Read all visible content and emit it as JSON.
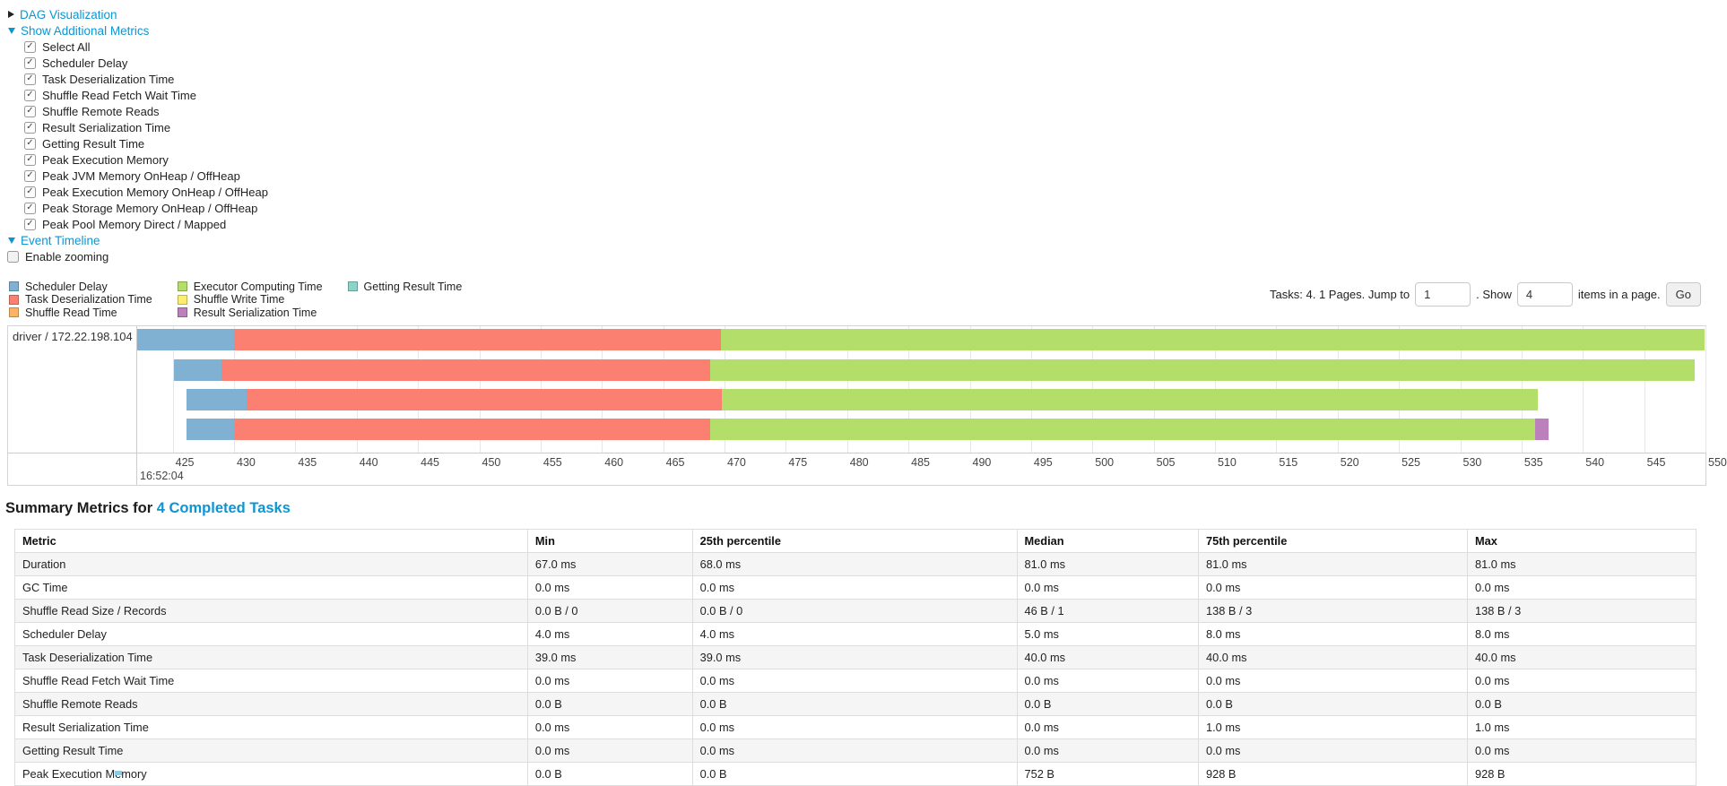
{
  "sections": {
    "dag": {
      "label": "DAG Visualization",
      "state": "collapsed"
    },
    "additional_metrics": {
      "label": "Show Additional Metrics",
      "state": "expanded"
    },
    "event_timeline": {
      "label": "Event Timeline",
      "state": "expanded"
    }
  },
  "metrics_panel": {
    "items": [
      {
        "label": "Select All",
        "checked": true
      },
      {
        "label": "Scheduler Delay",
        "checked": true
      },
      {
        "label": "Task Deserialization Time",
        "checked": true
      },
      {
        "label": "Shuffle Read Fetch Wait Time",
        "checked": true
      },
      {
        "label": "Shuffle Remote Reads",
        "checked": true
      },
      {
        "label": "Result Serialization Time",
        "checked": true
      },
      {
        "label": "Getting Result Time",
        "checked": true
      },
      {
        "label": "Peak Execution Memory",
        "checked": true
      },
      {
        "label": "Peak JVM Memory OnHeap / OffHeap",
        "checked": true
      },
      {
        "label": "Peak Execution Memory OnHeap / OffHeap",
        "checked": true
      },
      {
        "label": "Peak Storage Memory OnHeap / OffHeap",
        "checked": true
      },
      {
        "label": "Peak Pool Memory Direct / Mapped",
        "checked": true
      }
    ]
  },
  "enable_zooming": {
    "label": "Enable zooming",
    "checked": false
  },
  "legend": {
    "columns": [
      [
        {
          "label": "Scheduler Delay",
          "color": "#80B1D3"
        },
        {
          "label": "Task Deserialization Time",
          "color": "#FB8072"
        },
        {
          "label": "Shuffle Read Time",
          "color": "#FDB462"
        }
      ],
      [
        {
          "label": "Executor Computing Time",
          "color": "#B3DE69"
        },
        {
          "label": "Shuffle Write Time",
          "color": "#FFED6F"
        },
        {
          "label": "Result Serialization Time",
          "color": "#BC80BD"
        }
      ],
      [
        {
          "label": "Getting Result Time",
          "color": "#8DD3C7"
        }
      ]
    ]
  },
  "pagination": {
    "tasks_text": "Tasks: 4. 1 Pages. Jump to",
    "jump_value": "1",
    "show_label": ". Show",
    "show_value": "4",
    "items_label": "items in a page.",
    "go_label": "Go"
  },
  "chart_data": {
    "type": "timeline",
    "row_label": "driver / 172.22.198.104",
    "major_label": "16:52:04",
    "domain": [
      422.1,
      550.0
    ],
    "axis_ticks": [
      425,
      430,
      435,
      440,
      445,
      450,
      455,
      460,
      465,
      470,
      475,
      480,
      485,
      490,
      495,
      500,
      505,
      510,
      515,
      520,
      525,
      530,
      535,
      540,
      545,
      550
    ],
    "colors": {
      "scheduler_delay": "#80B1D3",
      "task_deserialization": "#FB8072",
      "shuffle_read": "#FDB462",
      "executor_computing": "#B3DE69",
      "shuffle_write": "#FFED6F",
      "result_serialization": "#BC80BD",
      "getting_result": "#8DD3C7"
    },
    "bars": [
      {
        "segments": [
          {
            "kind": "scheduler_delay",
            "from": 422.1,
            "to": 430.0
          },
          {
            "kind": "task_deserialization",
            "from": 430.0,
            "to": 469.7
          },
          {
            "kind": "executor_computing",
            "from": 469.7,
            "to": 549.9
          }
        ]
      },
      {
        "segments": [
          {
            "kind": "scheduler_delay",
            "from": 425.1,
            "to": 429.0
          },
          {
            "kind": "task_deserialization",
            "from": 429.0,
            "to": 468.8
          },
          {
            "kind": "executor_computing",
            "from": 468.8,
            "to": 549.1
          }
        ]
      },
      {
        "segments": [
          {
            "kind": "scheduler_delay",
            "from": 426.1,
            "to": 431.0
          },
          {
            "kind": "task_deserialization",
            "from": 431.0,
            "to": 469.8
          },
          {
            "kind": "executor_computing",
            "from": 469.8,
            "to": 536.3
          }
        ]
      },
      {
        "segments": [
          {
            "kind": "scheduler_delay",
            "from": 426.1,
            "to": 430.0
          },
          {
            "kind": "task_deserialization",
            "from": 430.0,
            "to": 468.8
          },
          {
            "kind": "executor_computing",
            "from": 468.8,
            "to": 536.1
          },
          {
            "kind": "result_serialization",
            "from": 536.1,
            "to": 537.2
          }
        ]
      }
    ]
  },
  "summary": {
    "title_prefix": "Summary Metrics for",
    "title_link": "4 Completed Tasks",
    "table": {
      "headers": [
        "Metric",
        "Min",
        "25th percentile",
        "Median",
        "75th percentile",
        "Max"
      ],
      "col_widths_pct": [
        30.5,
        9.8,
        19.3,
        10.8,
        16.0,
        13.6
      ],
      "rows": [
        [
          "Duration",
          "67.0 ms",
          "68.0 ms",
          "81.0 ms",
          "81.0 ms",
          "81.0 ms"
        ],
        [
          "GC Time",
          "0.0 ms",
          "0.0 ms",
          "0.0 ms",
          "0.0 ms",
          "0.0 ms"
        ],
        [
          "Shuffle Read Size / Records",
          "0.0 B / 0",
          "0.0 B / 0",
          "46 B / 1",
          "138 B / 3",
          "138 B / 3"
        ],
        [
          "Scheduler Delay",
          "4.0 ms",
          "4.0 ms",
          "5.0 ms",
          "8.0 ms",
          "8.0 ms"
        ],
        [
          "Task Deserialization Time",
          "39.0 ms",
          "39.0 ms",
          "40.0 ms",
          "40.0 ms",
          "40.0 ms"
        ],
        [
          "Shuffle Read Fetch Wait Time",
          "0.0 ms",
          "0.0 ms",
          "0.0 ms",
          "0.0 ms",
          "0.0 ms"
        ],
        [
          "Shuffle Remote Reads",
          "0.0 B",
          "0.0 B",
          "0.0 B",
          "0.0 B",
          "0.0 B"
        ],
        [
          "Result Serialization Time",
          "0.0 ms",
          "0.0 ms",
          "0.0 ms",
          "1.0 ms",
          "1.0 ms"
        ],
        [
          "Getting Result Time",
          "0.0 ms",
          "0.0 ms",
          "0.0 ms",
          "0.0 ms",
          "0.0 ms"
        ],
        [
          "Peak Execution Memory",
          "0.0 B",
          "0.0 B",
          "752 B",
          "928 B",
          "928 B"
        ]
      ]
    }
  }
}
